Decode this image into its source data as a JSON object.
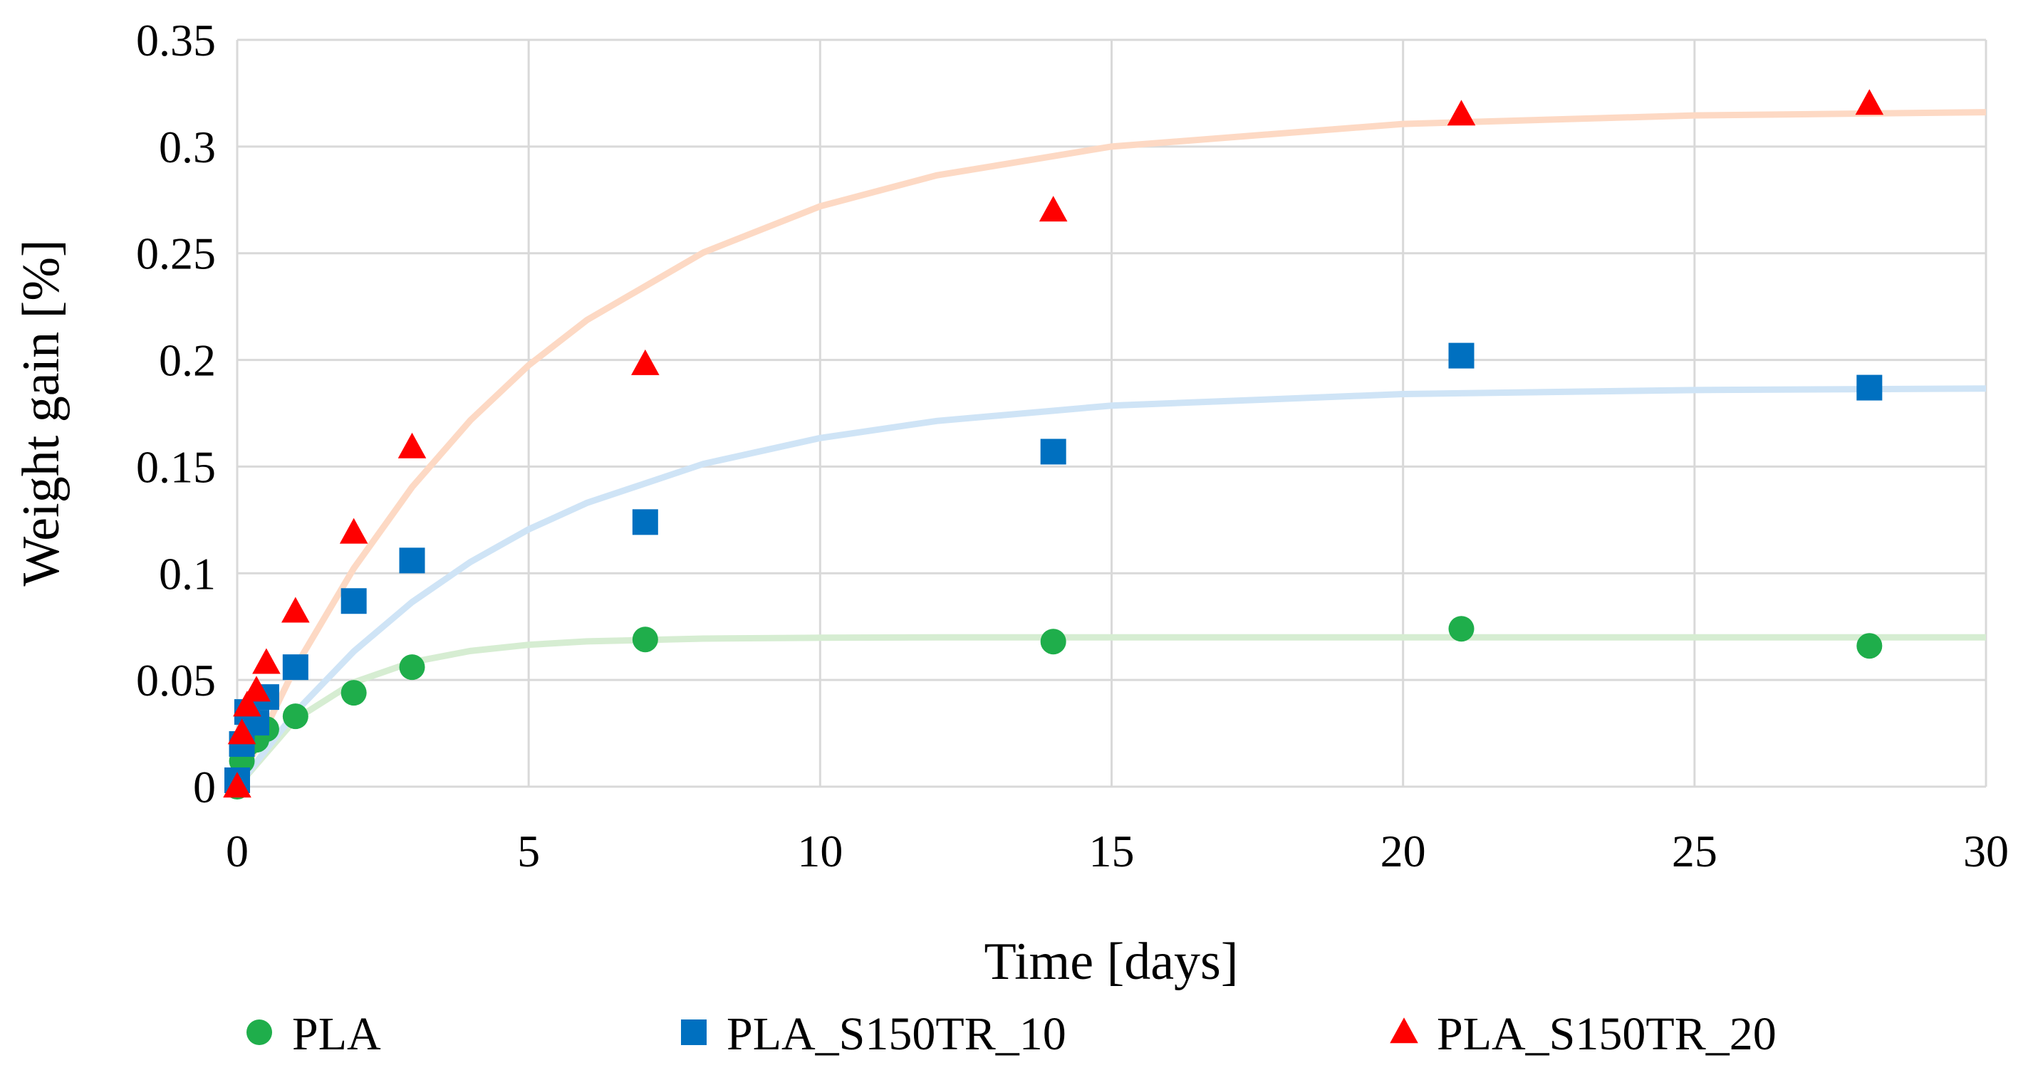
{
  "chart_data": {
    "type": "scatter",
    "xlabel": "Time [days]",
    "ylabel": "Weight gain [%]",
    "xlim": [
      0,
      30
    ],
    "xticks": [
      0,
      5,
      10,
      15,
      20,
      25,
      30
    ],
    "ylim": [
      0,
      0.35
    ],
    "yticks": [
      0,
      0.05,
      0.1,
      0.15,
      0.2,
      0.25,
      0.3,
      0.35
    ],
    "grid": true,
    "legend": "bottom",
    "series": [
      {
        "name": "PLA",
        "color": "#1fae4b",
        "marker": "circle",
        "x": [
          0,
          0.08,
          0.17,
          0.33,
          0.5,
          1,
          2,
          3,
          7,
          14,
          21,
          28
        ],
        "values": [
          0,
          0.012,
          0.02,
          0.022,
          0.027,
          0.033,
          0.044,
          0.056,
          0.069,
          0.068,
          0.074,
          0.066
        ],
        "trend": {
          "color": "#d6edd2",
          "x": [
            0,
            1,
            2,
            3,
            4,
            5,
            6,
            8,
            10,
            12,
            15,
            20,
            25,
            30
          ],
          "values": [
            0,
            0.0316,
            0.0489,
            0.0584,
            0.0636,
            0.0665,
            0.0681,
            0.0694,
            0.0698,
            0.07,
            0.07,
            0.07,
            0.07,
            0.07
          ]
        }
      },
      {
        "name": "PLA_S150TR_10",
        "color": "#0070c0",
        "marker": "square",
        "x": [
          0,
          0.08,
          0.17,
          0.33,
          0.5,
          1,
          2,
          3,
          7,
          14,
          21,
          28
        ],
        "values": [
          0.003,
          0.02,
          0.035,
          0.03,
          0.042,
          0.056,
          0.087,
          0.106,
          0.124,
          0.157,
          0.202,
          0.187
        ],
        "trend": {
          "color": "#cfe4f6",
          "x": [
            0,
            1,
            2,
            3,
            4,
            5,
            6,
            8,
            10,
            12,
            15,
            20,
            25,
            30
          ],
          "values": [
            0,
            0.035,
            0.0634,
            0.0865,
            0.1053,
            0.1206,
            0.133,
            0.1513,
            0.1634,
            0.1714,
            0.1786,
            0.184,
            0.1859,
            0.1866
          ]
        }
      },
      {
        "name": "PLA_S150TR_20",
        "color": "#ff0000",
        "marker": "triangle",
        "x": [
          0,
          0.08,
          0.17,
          0.33,
          0.5,
          1,
          2,
          3,
          7,
          14,
          21,
          28
        ],
        "values": [
          0,
          0.025,
          0.038,
          0.045,
          0.058,
          0.082,
          0.119,
          0.159,
          0.198,
          0.27,
          0.315,
          0.32
        ],
        "trend": {
          "color": "#fdd9c4",
          "x": [
            0,
            1,
            2,
            3,
            4,
            5,
            6,
            8,
            10,
            12,
            15,
            20,
            25,
            30
          ],
          "values": [
            0,
            0.0562,
            0.1023,
            0.1404,
            0.1717,
            0.1975,
            0.2187,
            0.2504,
            0.272,
            0.2865,
            0.3,
            0.3106,
            0.3146,
            0.3161
          ]
        }
      }
    ]
  }
}
